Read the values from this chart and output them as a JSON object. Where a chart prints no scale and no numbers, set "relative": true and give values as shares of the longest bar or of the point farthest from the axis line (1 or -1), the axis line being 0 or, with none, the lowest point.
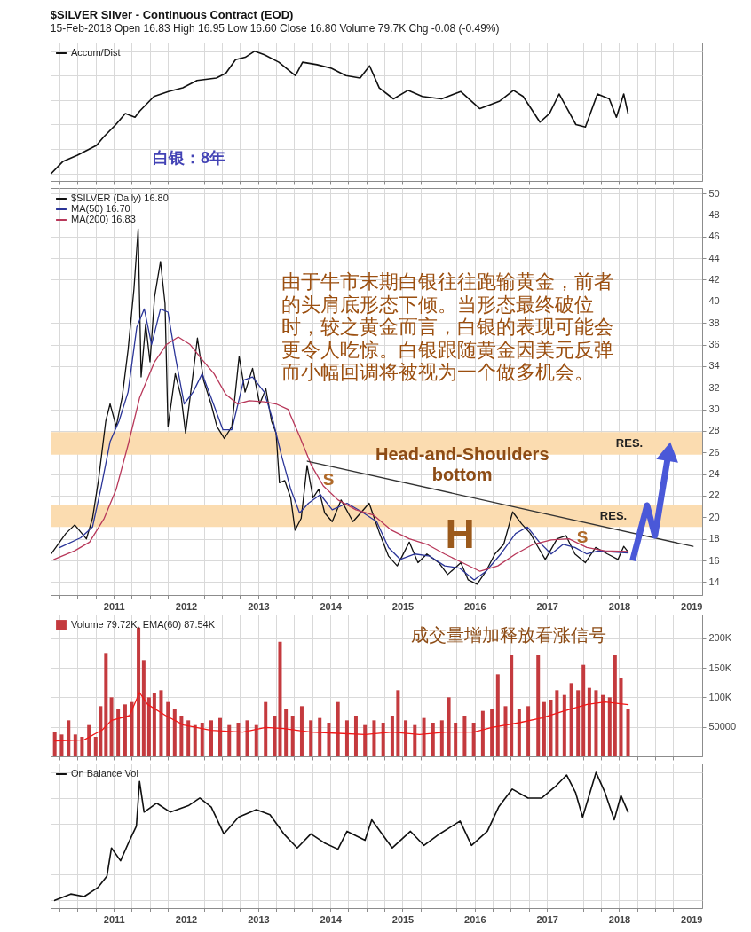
{
  "chart_data": [
    {
      "type": "line",
      "relative": true,
      "title": "$SILVER Silver - Continuous Contract (EOD)",
      "subtitle": "15-Feb-2018 Open 16.83 High 16.95 Low 16.60 Close 16.80 Volume 79.7K Chg -0.08 (-0.49%)",
      "series": [
        {
          "name": "Accum/Dist",
          "color": "#111111",
          "x": [
            "2010-02-18",
            "2010-04-19",
            "2010-07-01",
            "2010-10-05",
            "2010-11-11",
            "2011-01-11",
            "2011-02-28",
            "2011-04-18",
            "2011-05-12",
            "2011-07-23",
            "2011-10-04",
            "2011-12-16",
            "2012-02-26",
            "2012-06-03",
            "2012-07-21",
            "2012-09-08",
            "2012-10-27",
            "2012-12-14",
            "2013-02-01",
            "2013-04-15",
            "2013-07-08",
            "2013-08-13",
            "2013-10-25",
            "2014-01-06",
            "2014-03-20",
            "2014-05-31",
            "2014-07-18",
            "2014-09-05",
            "2014-11-16",
            "2015-01-28",
            "2015-04-11",
            "2015-07-17",
            "2015-10-22",
            "2016-01-27",
            "2016-05-04",
            "2016-07-15",
            "2016-09-02",
            "2016-11-26",
            "2017-01-13",
            "2017-03-03",
            "2017-04-20",
            "2017-05-27",
            "2017-07-14",
            "2017-09-13",
            "2017-11-12",
            "2017-12-18",
            "2018-01-24",
            "2018-02-15"
          ],
          "values": [
            0,
            0.1,
            0.15,
            0.23,
            0.3,
            0.4,
            0.49,
            0.46,
            0.51,
            0.63,
            0.67,
            0.7,
            0.76,
            0.78,
            0.82,
            0.93,
            0.95,
            1.0,
            0.97,
            0.91,
            0.8,
            0.91,
            0.89,
            0.86,
            0.8,
            0.78,
            0.88,
            0.7,
            0.61,
            0.68,
            0.63,
            0.61,
            0.67,
            0.53,
            0.59,
            0.68,
            0.63,
            0.42,
            0.49,
            0.65,
            0.51,
            0.4,
            0.38,
            0.65,
            0.61,
            0.46,
            0.65,
            0.49
          ]
        }
      ],
      "xlim": [
        "2010-02-15",
        "2019-02-25"
      ],
      "xticks": [
        {
          "value": "2010-04",
          "label": null
        },
        {
          "value": "2010-07",
          "label": null
        },
        {
          "value": "2010-10",
          "label": null
        },
        "2011",
        {
          "value": "2011-04",
          "label": null
        },
        {
          "value": "2011-07",
          "label": null
        },
        {
          "value": "2011-10",
          "label": null
        },
        "2012",
        {
          "value": "2012-04",
          "label": null
        },
        {
          "value": "2012-07",
          "label": null
        },
        {
          "value": "2012-10",
          "label": null
        },
        "2013",
        {
          "value": "2013-04",
          "label": null
        },
        {
          "value": "2013-07",
          "label": null
        },
        {
          "value": "2013-10",
          "label": null
        },
        "2014",
        {
          "value": "2014-04",
          "label": null
        },
        {
          "value": "2014-07",
          "label": null
        },
        {
          "value": "2014-10",
          "label": null
        },
        "2015",
        {
          "value": "2015-04",
          "label": null
        },
        {
          "value": "2015-07",
          "label": null
        },
        {
          "value": "2015-10",
          "label": null
        },
        "2016",
        {
          "value": "2016-04",
          "label": null
        },
        {
          "value": "2016-07",
          "label": null
        },
        {
          "value": "2016-10",
          "label": null
        },
        "2017",
        {
          "value": "2017-04",
          "label": null
        },
        {
          "value": "2017-07",
          "label": null
        },
        {
          "value": "2017-10",
          "label": null
        },
        "2018",
        {
          "value": "2018-04",
          "label": null
        },
        {
          "value": "2018-07",
          "label": null
        },
        {
          "value": "2018-10",
          "label": null
        },
        "2019"
      ],
      "tick_labels": false,
      "grid": true,
      "legend": "top left",
      "annotations": [
        "白银：8年"
      ]
    },
    {
      "type": "line",
      "series": [
        {
          "name": "$SILVER (Daily) 16.80",
          "color": "#111111",
          "x": [
            "2010-02-18",
            "2010-05-03",
            "2010-06-17",
            "2010-08-15",
            "2010-09-15",
            "2010-10-15",
            "2010-11-21",
            "2010-12-13",
            "2011-01-13",
            "2011-02-12",
            "2011-03-14",
            "2011-04-13",
            "2011-05-04",
            "2011-05-19",
            "2011-06-11",
            "2011-07-03",
            "2011-07-26",
            "2011-08-25",
            "2011-09-17",
            "2011-10-02",
            "2011-11-08",
            "2011-12-08",
            "2011-12-30",
            "2012-02-06",
            "2012-02-28",
            "2012-03-30",
            "2012-05-07",
            "2012-06-06",
            "2012-07-13",
            "2012-08-20",
            "2012-09-26",
            "2012-10-26",
            "2012-12-03",
            "2013-01-08",
            "2013-02-08",
            "2013-03-09",
            "2013-04-01",
            "2013-04-18",
            "2013-05-15",
            "2013-06-14",
            "2013-07-06",
            "2013-08-06",
            "2013-09-05",
            "2013-10-05",
            "2013-11-03",
            "2013-12-03",
            "2014-01-10",
            "2014-02-24",
            "2014-04-25",
            "2014-07-16",
            "2014-09-07",
            "2014-10-22",
            "2014-12-05",
            "2015-02-04",
            "2015-03-20",
            "2015-05-04",
            "2015-07-03",
            "2015-08-17",
            "2015-10-23",
            "2015-11-29",
            "2016-01-13",
            "2016-02-27",
            "2016-04-12",
            "2016-05-27",
            "2016-07-11",
            "2016-08-25",
            "2016-10-09",
            "2016-11-08",
            "2016-12-23",
            "2017-02-21",
            "2017-04-07",
            "2017-05-22",
            "2017-07-14",
            "2017-09-04",
            "2017-11-03",
            "2017-12-26",
            "2018-01-24",
            "2018-02-15"
          ],
          "values": [
            16.6,
            18.5,
            19.3,
            18.0,
            19.9,
            23.4,
            28.9,
            30.5,
            28.4,
            31.1,
            35.5,
            41.2,
            46.7,
            33.0,
            37.9,
            34.4,
            40.4,
            43.7,
            39.8,
            28.4,
            33.3,
            31.1,
            27.8,
            33.3,
            36.6,
            32.7,
            30.5,
            28.4,
            27.3,
            28.4,
            34.9,
            31.6,
            33.8,
            30.5,
            31.9,
            28.9,
            27.8,
            23.2,
            23.4,
            21.8,
            18.8,
            19.9,
            24.8,
            21.8,
            22.6,
            20.4,
            19.6,
            21.6,
            19.6,
            21.3,
            18.5,
            16.4,
            15.5,
            17.7,
            15.8,
            16.6,
            15.8,
            14.7,
            15.8,
            14.2,
            13.8,
            15.0,
            16.6,
            17.5,
            20.5,
            19.4,
            18.5,
            17.5,
            16.1,
            18.0,
            18.3,
            16.6,
            15.8,
            17.2,
            16.6,
            16.1,
            17.3,
            16.8
          ]
        },
        {
          "name": "MA(50) 16.70",
          "color": "#2b3598",
          "x": [
            "2010-04-03",
            "2010-07-17",
            "2010-09-15",
            "2010-10-30",
            "2010-12-13",
            "2011-01-27",
            "2011-03-14",
            "2011-04-27",
            "2011-06-04",
            "2011-07-11",
            "2011-08-25",
            "2011-10-02",
            "2011-11-08",
            "2011-12-23",
            "2012-02-06",
            "2012-03-23",
            "2012-05-07",
            "2012-07-06",
            "2012-08-20",
            "2012-10-19",
            "2012-12-03",
            "2013-01-31",
            "2013-03-17",
            "2013-04-30",
            "2013-06-14",
            "2013-07-29",
            "2013-09-12",
            "2013-11-11",
            "2014-01-10",
            "2014-03-26",
            "2014-06-09",
            "2014-08-23",
            "2014-10-22",
            "2014-12-20",
            "2015-03-05",
            "2015-05-19",
            "2015-08-02",
            "2015-10-16",
            "2015-12-29",
            "2016-02-27",
            "2016-05-12",
            "2016-07-26",
            "2016-09-24",
            "2016-11-23",
            "2017-01-22",
            "2017-03-24",
            "2017-05-22",
            "2017-07-21",
            "2017-09-19",
            "2017-11-18",
            "2018-02-15"
          ],
          "values": [
            17.2,
            18.1,
            19.1,
            22.9,
            27.0,
            28.9,
            31.6,
            37.6,
            39.3,
            36.0,
            39.3,
            39.0,
            34.9,
            30.5,
            31.6,
            33.3,
            31.1,
            28.1,
            28.1,
            32.7,
            33.0,
            31.6,
            28.9,
            25.6,
            22.6,
            20.4,
            21.3,
            22.1,
            20.7,
            21.3,
            20.5,
            19.6,
            17.2,
            16.1,
            16.6,
            16.4,
            15.5,
            15.3,
            14.2,
            15.0,
            16.6,
            18.5,
            19.1,
            17.7,
            16.6,
            17.5,
            17.2,
            16.6,
            16.9,
            16.8,
            16.7
          ]
        },
        {
          "name": "MA(200) 16.83",
          "color": "#b8385a",
          "x": [
            "2010-03-04",
            "2010-06-17",
            "2010-08-31",
            "2010-11-13",
            "2011-01-13",
            "2011-03-14",
            "2011-05-12",
            "2011-07-26",
            "2011-09-24",
            "2011-11-23",
            "2012-01-22",
            "2012-03-23",
            "2012-05-22",
            "2012-07-20",
            "2012-09-18",
            "2012-11-17",
            "2013-01-31",
            "2013-04-01",
            "2013-05-31",
            "2013-07-29",
            "2013-09-27",
            "2013-11-26",
            "2014-02-09",
            "2014-05-10",
            "2014-08-08",
            "2014-11-06",
            "2015-02-04",
            "2015-05-04",
            "2015-08-02",
            "2015-10-31",
            "2016-01-28",
            "2016-04-27",
            "2016-07-26",
            "2016-10-24",
            "2017-01-22",
            "2017-04-22",
            "2017-07-21",
            "2017-10-19",
            "2018-02-15"
          ],
          "values": [
            16.1,
            16.9,
            17.7,
            19.9,
            22.6,
            26.7,
            31.1,
            34.4,
            36.0,
            36.7,
            36.0,
            34.6,
            33.3,
            31.4,
            30.5,
            30.8,
            30.7,
            30.5,
            30.0,
            27.5,
            24.8,
            22.9,
            21.6,
            20.7,
            20.2,
            18.8,
            18.0,
            17.5,
            16.6,
            15.8,
            15.0,
            15.5,
            16.6,
            17.5,
            17.9,
            18.0,
            17.2,
            16.9,
            16.83
          ]
        },
        {
          "color": "#333333",
          "x": [
            "2013-09-06",
            "2019-01-10"
          ],
          "values": [
            25.2,
            17.3
          ]
        },
        {
          "color": "#4a58d8",
          "x": [
            "2018-03-10",
            "2018-05-22",
            "2018-07-01",
            "2018-09-09"
          ],
          "values": [
            16.0,
            21.1,
            18.3,
            26.1
          ]
        }
      ],
      "xlim": [
        "2010-02-15",
        "2019-02-25"
      ],
      "xticks": [
        {
          "value": "2010-04",
          "label": null
        },
        {
          "value": "2010-07",
          "label": null
        },
        {
          "value": "2010-10",
          "label": null
        },
        "2011",
        {
          "value": "2011-04",
          "label": null
        },
        {
          "value": "2011-07",
          "label": null
        },
        {
          "value": "2011-10",
          "label": null
        },
        "2012",
        {
          "value": "2012-04",
          "label": null
        },
        {
          "value": "2012-07",
          "label": null
        },
        {
          "value": "2012-10",
          "label": null
        },
        "2013",
        {
          "value": "2013-04",
          "label": null
        },
        {
          "value": "2013-07",
          "label": null
        },
        {
          "value": "2013-10",
          "label": null
        },
        "2014",
        {
          "value": "2014-04",
          "label": null
        },
        {
          "value": "2014-07",
          "label": null
        },
        {
          "value": "2014-10",
          "label": null
        },
        "2015",
        {
          "value": "2015-04",
          "label": null
        },
        {
          "value": "2015-07",
          "label": null
        },
        {
          "value": "2015-10",
          "label": null
        },
        "2016",
        {
          "value": "2016-04",
          "label": null
        },
        {
          "value": "2016-07",
          "label": null
        },
        {
          "value": "2016-10",
          "label": null
        },
        "2017",
        {
          "value": "2017-04",
          "label": null
        },
        {
          "value": "2017-07",
          "label": null
        },
        {
          "value": "2017-10",
          "label": null
        },
        "2018",
        {
          "value": "2018-04",
          "label": null
        },
        {
          "value": "2018-07",
          "label": null
        },
        {
          "value": "2018-10",
          "label": null
        },
        "2019"
      ],
      "ylim": [
        12.8,
        50.5
      ],
      "yticks": [
        14,
        16,
        18,
        20,
        22,
        24,
        26,
        28,
        30,
        32,
        34,
        36,
        38,
        40,
        42,
        44,
        46,
        48,
        50
      ],
      "grid": true,
      "legend": "top left",
      "bands": [
        {
          "axis": "y",
          "from": 25.8,
          "to": 27.9,
          "label": "RES.",
          "color": "#fbdcb0"
        },
        {
          "axis": "y",
          "from": 19.1,
          "to": 21.1,
          "label": "RES.",
          "color": "#fbdcb0"
        }
      ],
      "annotations": [
        "由于牛市末期白银往往跑输黄金，前者",
        "的头肩底形态下倾。当形态最终破位",
        "时，较之黄金而言，白银的表现可能会",
        "更令人吃惊。白银跟随黄金因美元反弹",
        "而小幅回调将被视为一个做多机会。",
        {
          "text": "Head-and-Shoulders\nbottom",
          "x": "2015-10-30",
          "y": 25.8
        },
        "S",
        "H",
        "S"
      ]
    },
    {
      "type": "bar",
      "series": [
        {
          "name": "Volume 79.72K, EMA(60) 87.54K",
          "color": "#c43a3e",
          "x": [
            "2010-03-08",
            "2010-04-12",
            "2010-05-17",
            "2010-06-20",
            "2010-07-24",
            "2010-08-28",
            "2010-10-01",
            "2010-10-26",
            "2010-11-22",
            "2010-12-20",
            "2011-01-23",
            "2011-02-27",
            "2011-04-02",
            "2011-05-06",
            "2011-06-01",
            "2011-06-28",
            "2011-07-25",
            "2011-08-28",
            "2011-10-02",
            "2011-11-05",
            "2011-12-09",
            "2012-01-13",
            "2012-02-16",
            "2012-03-23",
            "2012-05-08",
            "2012-06-22",
            "2012-08-07",
            "2012-09-22",
            "2012-11-06",
            "2012-12-22",
            "2013-02-07",
            "2013-03-25",
            "2013-04-21",
            "2013-05-21",
            "2013-06-24",
            "2013-08-09",
            "2013-09-24",
            "2013-11-08",
            "2013-12-24",
            "2014-02-08",
            "2014-03-26",
            "2014-05-10",
            "2014-06-25",
            "2014-08-10",
            "2014-09-25",
            "2014-11-10",
            "2014-12-09",
            "2015-01-17",
            "2015-03-04",
            "2015-04-19",
            "2015-06-04",
            "2015-07-19",
            "2015-08-23",
            "2015-09-26",
            "2015-11-11",
            "2015-12-27",
            "2016-02-11",
            "2016-03-28",
            "2016-04-27",
            "2016-06-05",
            "2016-07-05",
            "2016-08-13",
            "2016-09-28",
            "2016-11-17",
            "2016-12-17",
            "2017-01-20",
            "2017-02-20",
            "2017-03-30",
            "2017-05-04",
            "2017-06-07",
            "2017-07-04",
            "2017-08-03",
            "2017-09-06",
            "2017-10-10",
            "2017-11-14",
            "2017-12-11",
            "2018-01-10",
            "2018-02-15"
          ],
          "values": [
            41000,
            37000,
            61000,
            37000,
            33000,
            53000,
            33000,
            85000,
            175000,
            100000,
            80000,
            88000,
            92000,
            218000,
            163000,
            100000,
            108000,
            112000,
            92000,
            80000,
            69000,
            61000,
            53000,
            57000,
            61000,
            65000,
            53000,
            57000,
            61000,
            53000,
            92000,
            69000,
            194000,
            80000,
            69000,
            85000,
            61000,
            65000,
            57000,
            92000,
            61000,
            69000,
            53000,
            61000,
            57000,
            69000,
            112000,
            61000,
            53000,
            65000,
            57000,
            61000,
            100000,
            57000,
            69000,
            57000,
            77000,
            80000,
            139000,
            85000,
            171000,
            80000,
            85000,
            171000,
            92000,
            96000,
            112000,
            104000,
            124000,
            112000,
            155000,
            116000,
            112000,
            104000,
            100000,
            171000,
            132000,
            79720
          ]
        },
        {
          "type": "line",
          "color": "#f01818",
          "x": [
            "2010-03-08",
            "2010-08-04",
            "2010-11-04",
            "2010-12-20",
            "2011-03-21",
            "2011-05-11",
            "2011-06-21",
            "2011-09-21",
            "2011-12-20",
            "2012-05-08",
            "2012-10-15",
            "2013-02-07",
            "2013-05-10",
            "2013-09-24",
            "2014-02-08",
            "2014-06-25",
            "2014-11-10",
            "2015-03-28",
            "2015-08-12",
            "2015-12-27",
            "2016-03-28",
            "2016-08-13",
            "2016-12-05",
            "2017-03-30",
            "2017-07-23",
            "2017-10-22",
            "2018-02-15"
          ],
          "values": [
            26000,
            28000,
            45000,
            61000,
            69000,
            108000,
            88000,
            69000,
            53000,
            44000,
            41000,
            49000,
            47000,
            41000,
            39000,
            37000,
            41000,
            37000,
            41000,
            41000,
            49000,
            57000,
            65000,
            77000,
            88000,
            92000,
            87540
          ]
        }
      ],
      "xlim": [
        "2010-02-15",
        "2019-02-25"
      ],
      "xticks": [
        {
          "value": "2010-04",
          "label": null
        },
        {
          "value": "2010-07",
          "label": null
        },
        {
          "value": "2010-10",
          "label": null
        },
        "2011",
        {
          "value": "2011-04",
          "label": null
        },
        {
          "value": "2011-07",
          "label": null
        },
        {
          "value": "2011-10",
          "label": null
        },
        "2012",
        {
          "value": "2012-04",
          "label": null
        },
        {
          "value": "2012-07",
          "label": null
        },
        {
          "value": "2012-10",
          "label": null
        },
        "2013",
        {
          "value": "2013-04",
          "label": null
        },
        {
          "value": "2013-07",
          "label": null
        },
        {
          "value": "2013-10",
          "label": null
        },
        "2014",
        {
          "value": "2014-04",
          "label": null
        },
        {
          "value": "2014-07",
          "label": null
        },
        {
          "value": "2014-10",
          "label": null
        },
        "2015",
        {
          "value": "2015-04",
          "label": null
        },
        {
          "value": "2015-07",
          "label": null
        },
        {
          "value": "2015-10",
          "label": null
        },
        "2016",
        {
          "value": "2016-04",
          "label": null
        },
        {
          "value": "2016-07",
          "label": null
        },
        {
          "value": "2016-10",
          "label": null
        },
        "2017",
        {
          "value": "2017-04",
          "label": null
        },
        {
          "value": "2017-07",
          "label": null
        },
        {
          "value": "2017-10",
          "label": null
        },
        "2018",
        {
          "value": "2018-04",
          "label": null
        },
        {
          "value": "2018-07",
          "label": null
        },
        {
          "value": "2018-10",
          "label": null
        },
        "2019"
      ],
      "ylim": [
        0,
        240000
      ],
      "yticks": [
        50000,
        {
          "value": 100000,
          "label": "100K"
        },
        {
          "value": 150000,
          "label": "150K"
        },
        {
          "value": 200000,
          "label": "200K"
        }
      ],
      "tick_labels": "y",
      "grid": true,
      "legend": "top left",
      "annotations": [
        "成交量增加释放看涨信号"
      ]
    },
    {
      "type": "line",
      "relative": true,
      "series": [
        {
          "name": "On Balance Vol",
          "color": "#111111",
          "x": [
            "2010-03-08",
            "2010-05-28",
            "2010-08-04",
            "2010-10-12",
            "2010-11-27",
            "2010-12-20",
            "2011-02-04",
            "2011-03-22",
            "2011-04-25",
            "2011-05-11",
            "2011-06-03",
            "2011-08-06",
            "2011-10-14",
            "2012-01-13",
            "2012-03-11",
            "2012-05-08",
            "2012-07-11",
            "2012-09-23",
            "2012-12-22",
            "2013-03-01",
            "2013-05-10",
            "2013-07-17",
            "2013-09-24",
            "2013-12-01",
            "2014-02-08",
            "2014-03-26",
            "2014-06-25",
            "2014-07-29",
            "2014-11-10",
            "2015-02-10",
            "2015-04-19",
            "2015-06-28",
            "2015-10-19",
            "2015-12-16",
            "2016-03-05",
            "2016-05-01",
            "2016-07-09",
            "2016-09-27",
            "2016-12-05",
            "2017-02-12",
            "2017-04-10",
            "2017-05-26",
            "2017-06-30",
            "2017-09-06",
            "2017-10-22",
            "2017-12-07",
            "2018-01-10",
            "2018-02-15"
          ],
          "values": [
            0,
            0.05,
            0.03,
            0.1,
            0.19,
            0.41,
            0.31,
            0.47,
            0.58,
            0.93,
            0.69,
            0.76,
            0.69,
            0.74,
            0.8,
            0.73,
            0.52,
            0.65,
            0.71,
            0.67,
            0.52,
            0.41,
            0.52,
            0.45,
            0.4,
            0.54,
            0.47,
            0.63,
            0.41,
            0.54,
            0.43,
            0.51,
            0.62,
            0.43,
            0.54,
            0.73,
            0.87,
            0.8,
            0.8,
            0.89,
            0.98,
            0.84,
            0.65,
            1.0,
            0.84,
            0.63,
            0.82,
            0.69
          ]
        }
      ],
      "xlim": [
        "2010-02-15",
        "2019-02-25"
      ],
      "xticks": [
        {
          "value": "2010-04",
          "label": null
        },
        {
          "value": "2010-07",
          "label": null
        },
        {
          "value": "2010-10",
          "label": null
        },
        "2011",
        {
          "value": "2011-04",
          "label": null
        },
        {
          "value": "2011-07",
          "label": null
        },
        {
          "value": "2011-10",
          "label": null
        },
        "2012",
        {
          "value": "2012-04",
          "label": null
        },
        {
          "value": "2012-07",
          "label": null
        },
        {
          "value": "2012-10",
          "label": null
        },
        "2013",
        {
          "value": "2013-04",
          "label": null
        },
        {
          "value": "2013-07",
          "label": null
        },
        {
          "value": "2013-10",
          "label": null
        },
        "2014",
        {
          "value": "2014-04",
          "label": null
        },
        {
          "value": "2014-07",
          "label": null
        },
        {
          "value": "2014-10",
          "label": null
        },
        "2015",
        {
          "value": "2015-04",
          "label": null
        },
        {
          "value": "2015-07",
          "label": null
        },
        {
          "value": "2015-10",
          "label": null
        },
        "2016",
        {
          "value": "2016-04",
          "label": null
        },
        {
          "value": "2016-07",
          "label": null
        },
        {
          "value": "2016-10",
          "label": null
        },
        "2017",
        {
          "value": "2017-04",
          "label": null
        },
        {
          "value": "2017-07",
          "label": null
        },
        {
          "value": "2017-10",
          "label": null
        },
        "2018",
        {
          "value": "2018-04",
          "label": null
        },
        {
          "value": "2018-07",
          "label": null
        },
        {
          "value": "2018-10",
          "label": null
        },
        "2019"
      ],
      "tick_labels": "x",
      "grid": true,
      "legend": "top left"
    }
  ]
}
